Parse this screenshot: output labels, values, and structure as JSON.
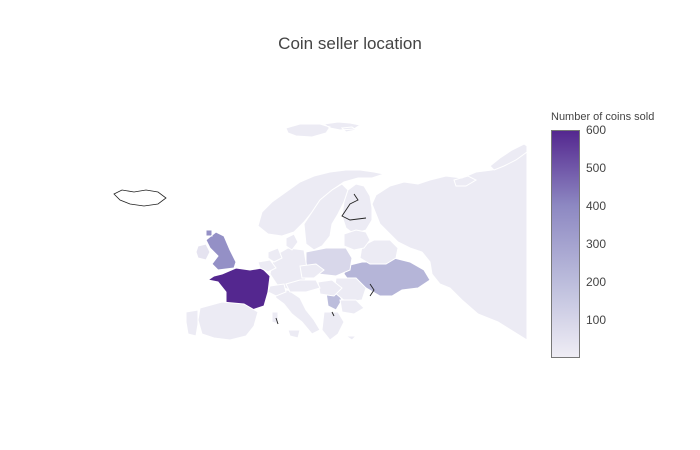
{
  "title": "Coin seller location",
  "colorbar": {
    "title": "Number of coins sold",
    "min": 0,
    "max": 600,
    "ticks": [
      "600",
      "500",
      "400",
      "300",
      "200",
      "100"
    ],
    "tick_values": [
      600,
      500,
      400,
      300,
      200,
      100
    ],
    "colorscale": [
      "#efedf5",
      "#bcbddc",
      "#8d88c2",
      "#54278f"
    ]
  },
  "chart_data": {
    "type": "choropleth",
    "title": "Coin seller location",
    "scope": "europe",
    "colorbar_title": "Number of coins sold",
    "range": [
      0,
      600
    ],
    "regions": [
      {
        "name": "France",
        "value": 600
      },
      {
        "name": "United Kingdom",
        "value": 370
      },
      {
        "name": "Ukraine",
        "value": 230
      },
      {
        "name": "Serbia",
        "value": 200
      },
      {
        "name": "Poland",
        "value": 90
      },
      {
        "name": "Ireland",
        "value": 40
      },
      {
        "name": "Spain",
        "value": 10
      },
      {
        "name": "Portugal",
        "value": 10
      },
      {
        "name": "Germany",
        "value": 10
      },
      {
        "name": "Italy",
        "value": 10
      },
      {
        "name": "Norway",
        "value": 10
      },
      {
        "name": "Sweden",
        "value": 10
      },
      {
        "name": "Finland",
        "value": 10
      },
      {
        "name": "Russia",
        "value": 10
      },
      {
        "name": "Belarus",
        "value": 10
      },
      {
        "name": "Romania",
        "value": 10
      },
      {
        "name": "Bulgaria",
        "value": 10
      },
      {
        "name": "Greece",
        "value": 10
      },
      {
        "name": "Hungary",
        "value": 10
      },
      {
        "name": "Czechia",
        "value": 10
      },
      {
        "name": "Austria",
        "value": 10
      },
      {
        "name": "Switzerland",
        "value": 10
      },
      {
        "name": "Belgium",
        "value": 10
      },
      {
        "name": "Netherlands",
        "value": 10
      },
      {
        "name": "Denmark",
        "value": 10
      },
      {
        "name": "Baltics",
        "value": 10
      },
      {
        "name": "Svalbard",
        "value": 10
      },
      {
        "name": "Novaya Zemlya",
        "value": 10
      },
      {
        "name": "Iceland",
        "value": null
      }
    ]
  }
}
